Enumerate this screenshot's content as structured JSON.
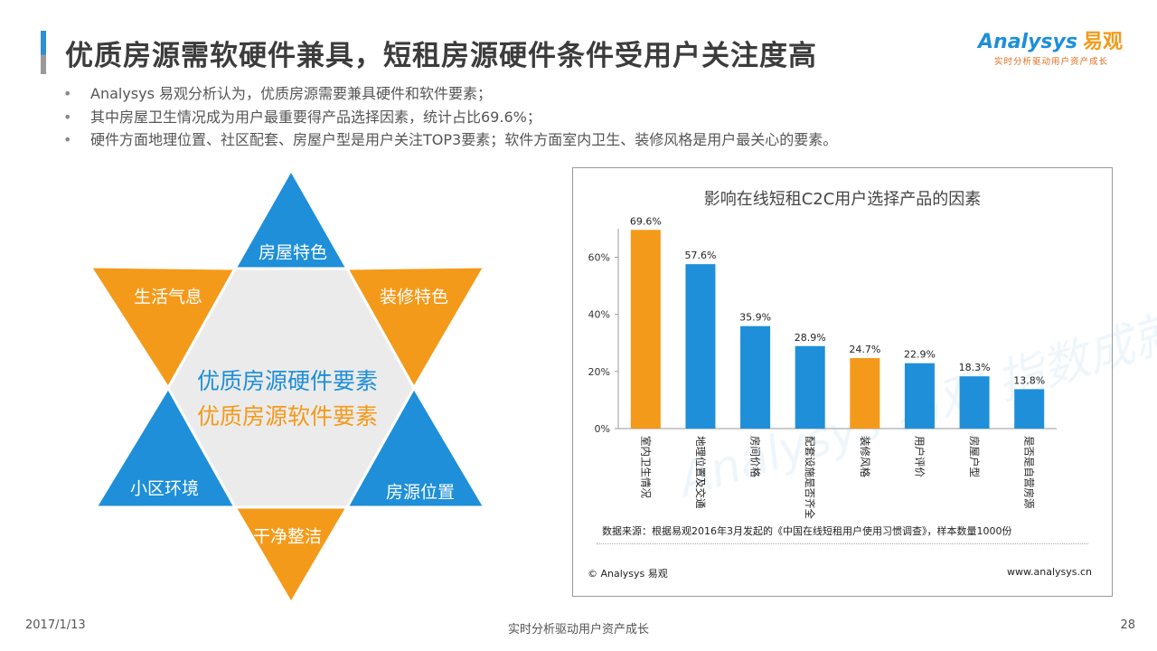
{
  "header": {
    "title": "优质房源需软硬件兼具，短租房源硬件条件受用户关注度高"
  },
  "logo": {
    "text_en": "Analysys",
    "text_cn": "易观",
    "tagline": "实时分析驱动用户资产成长"
  },
  "bullets": [
    "Analysys 易观分析认为，优质房源需要兼具硬件和软件要素；",
    "其中房屋卫生情况成为用户最重要得产品选择因素，统计占比69.6%；",
    "硬件方面地理位置、社区配套、房屋户型是用户关注TOP3要素；软件方面室内卫生、装修风格是用户最关心的要素。"
  ],
  "star": {
    "top": "房屋特色",
    "upper_left": "生活气息",
    "upper_right": "装修特色",
    "lower_left": "小区环境",
    "lower_right": "房源位置",
    "bottom": "干净整洁",
    "center_hardware": "优质房源硬件要素",
    "center_software": "优质房源软件要素",
    "colors": {
      "blue": "#1e8fd8",
      "orange": "#f49a1a",
      "center": "#ebebeb"
    }
  },
  "chart_data": {
    "type": "bar",
    "title": "影响在线短租C2C用户选择产品的因素",
    "categories": [
      "室内卫生情况",
      "地理位置及交通",
      "房间价格",
      "配套设施是否齐全",
      "装修风格",
      "用户评价",
      "房屋户型",
      "是否是自营房源"
    ],
    "values": [
      69.6,
      57.6,
      35.9,
      28.9,
      24.7,
      22.9,
      18.3,
      13.8
    ],
    "value_labels": [
      "69.6%",
      "57.6%",
      "35.9%",
      "28.9%",
      "24.7%",
      "22.9%",
      "18.3%",
      "13.8%"
    ],
    "bar_colors": [
      "#f49a1a",
      "#1e8fd8",
      "#1e8fd8",
      "#1e8fd8",
      "#f49a1a",
      "#1e8fd8",
      "#1e8fd8",
      "#1e8fd8"
    ],
    "yticks": [
      "0%",
      "20%",
      "40%",
      "60%"
    ],
    "ytick_values": [
      0,
      20,
      40,
      60
    ],
    "ylim": [
      0,
      70
    ],
    "grid": false,
    "source": "数据来源：根据易观2016年3月发起的《中国在线短租用户使用习惯调查》，样本数量1000份",
    "copyright": "© Analysys 易观",
    "website": "www.analysys.cn",
    "watermark": "Analysys 易观 指数成就用户价值"
  },
  "footer": {
    "date": "2017/1/13",
    "tagline": "实时分析驱动用户资产成长",
    "page": "28"
  }
}
